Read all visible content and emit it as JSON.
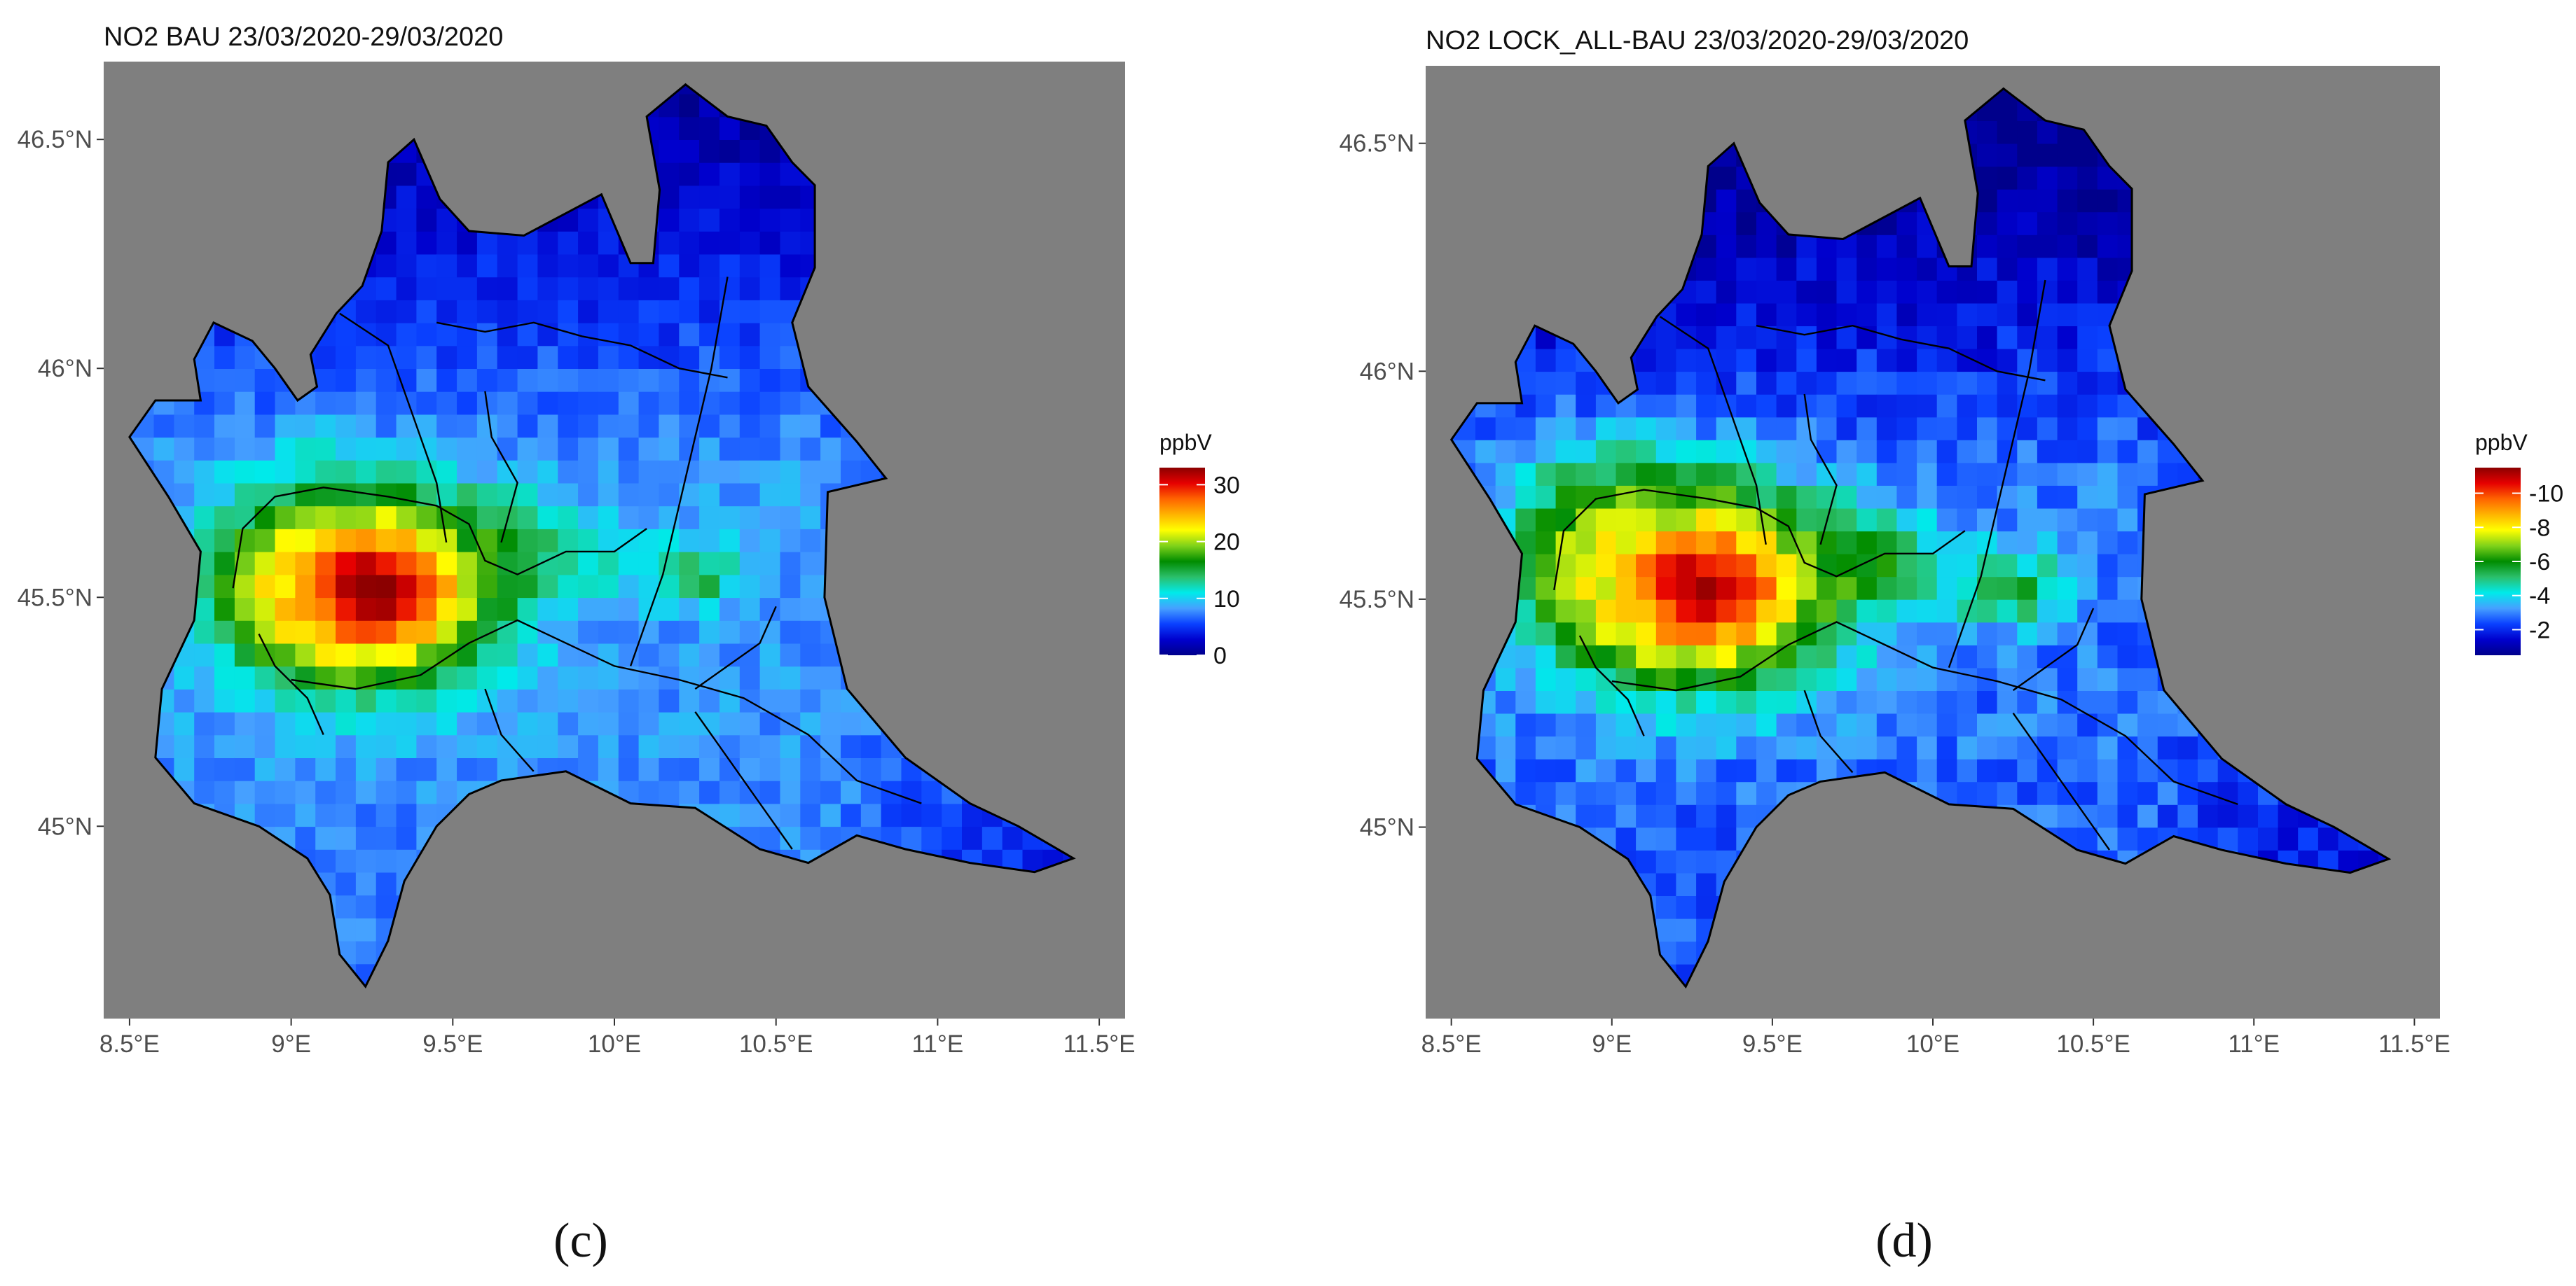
{
  "chart_data": [
    {
      "type": "heatmap",
      "title": "NO2 BAU 23/03/2020-29/03/2020",
      "panel_label": "(c)",
      "xlim": [
        8.42,
        11.58
      ],
      "ylim": [
        44.58,
        46.67
      ],
      "x_ticks": [
        8.5,
        9,
        9.5,
        10,
        10.5,
        11,
        11.5
      ],
      "y_ticks": [
        45,
        45.5,
        46,
        46.5
      ],
      "x_tick_labels": [
        "8.5°E",
        "9°E",
        "9.5°E",
        "10°E",
        "10.5°E",
        "11°E",
        "11.5°E"
      ],
      "y_tick_labels": [
        "45°N",
        "45.5°N",
        "46°N",
        "46.5°N"
      ],
      "background_color": "#7f7f7f",
      "grid": false,
      "legend": {
        "title": "ppbV",
        "placement": "right",
        "range": [
          0,
          33
        ],
        "ticks": [
          0,
          10,
          20,
          30
        ],
        "tick_labels": [
          "0",
          "10",
          "20",
          "30"
        ],
        "reversed": false,
        "colors": [
          "#00008b",
          "#0000cd",
          "#0a41ff",
          "#46a0ff",
          "#00eaea",
          "#2bbf6a",
          "#008c00",
          "#7fd21a",
          "#ffff00",
          "#ffb400",
          "#ff6400",
          "#e60000",
          "#8b0000"
        ]
      },
      "features": {
        "hotspots": [
          {
            "lon": 9.22,
            "lat": 45.49,
            "value": 33,
            "rx": 0.35,
            "ry": 0.18
          },
          {
            "lon": 9.05,
            "lat": 45.5,
            "value": 24,
            "rx": 0.28,
            "ry": 0.17
          },
          {
            "lon": 9.6,
            "lat": 45.58,
            "value": 17,
            "rx": 0.25,
            "ry": 0.1
          },
          {
            "lon": 10.23,
            "lat": 45.52,
            "value": 17,
            "rx": 0.1,
            "ry": 0.05
          },
          {
            "lon": 10.0,
            "lat": 45.56,
            "value": 12,
            "rx": 0.33,
            "ry": 0.08
          },
          {
            "lon": 9.05,
            "lat": 45.74,
            "value": 12,
            "rx": 0.15,
            "ry": 0.1
          }
        ],
        "gradients": {
          "base": 8,
          "north_decay": 5.5,
          "east_low": 5
        },
        "value_range": [
          0,
          33
        ],
        "noise": 1.4
      }
    },
    {
      "type": "heatmap",
      "title": "NO2 LOCK_ALL-BAU 23/03/2020-29/03/2020",
      "panel_label": "(d)",
      "xlim": [
        8.42,
        11.58
      ],
      "ylim": [
        44.58,
        46.67
      ],
      "x_ticks": [
        8.5,
        9,
        9.5,
        10,
        10.5,
        11,
        11.5
      ],
      "y_ticks": [
        45,
        45.5,
        46,
        46.5
      ],
      "x_tick_labels": [
        "8.5°E",
        "9°E",
        "9.5°E",
        "10°E",
        "10.5°E",
        "11°E",
        "11.5°E"
      ],
      "y_tick_labels": [
        "45°N",
        "45.5°N",
        "46°N",
        "46.5°N"
      ],
      "background_color": "#7f7f7f",
      "grid": false,
      "legend": {
        "title": "ppbV",
        "placement": "right",
        "range": [
          -11.5,
          -0.5
        ],
        "ticks": [
          -2,
          -4,
          -6,
          -8,
          -10
        ],
        "tick_labels": [
          "-2",
          "-4",
          "-6",
          "-8",
          "-10"
        ],
        "reversed": true,
        "colors": [
          "#00008b",
          "#0000cd",
          "#0a41ff",
          "#46a0ff",
          "#00eaea",
          "#2bbf6a",
          "#008c00",
          "#7fd21a",
          "#ffff00",
          "#ffb400",
          "#ff6400",
          "#e60000",
          "#8b0000"
        ]
      },
      "features": {
        "hotspots": [
          {
            "lon": 9.25,
            "lat": 45.5,
            "value": 11,
            "rx": 0.4,
            "ry": 0.2
          },
          {
            "lon": 9.0,
            "lat": 45.56,
            "value": 8,
            "rx": 0.3,
            "ry": 0.2
          },
          {
            "lon": 9.7,
            "lat": 45.56,
            "value": 6.5,
            "rx": 0.28,
            "ry": 0.1
          },
          {
            "lon": 10.22,
            "lat": 45.5,
            "value": 6,
            "rx": 0.15,
            "ry": 0.07
          },
          {
            "lon": 10.0,
            "lat": 45.52,
            "value": 4.5,
            "rx": 0.35,
            "ry": 0.1
          },
          {
            "lon": 8.95,
            "lat": 45.72,
            "value": 5,
            "rx": 0.15,
            "ry": 0.1
          }
        ],
        "gradients": {
          "base": 2.8,
          "north_decay": 2,
          "east_low": 1.5
        },
        "value_range": [
          0.5,
          11.5
        ],
        "noise": 0.6,
        "sign": -1
      }
    }
  ]
}
